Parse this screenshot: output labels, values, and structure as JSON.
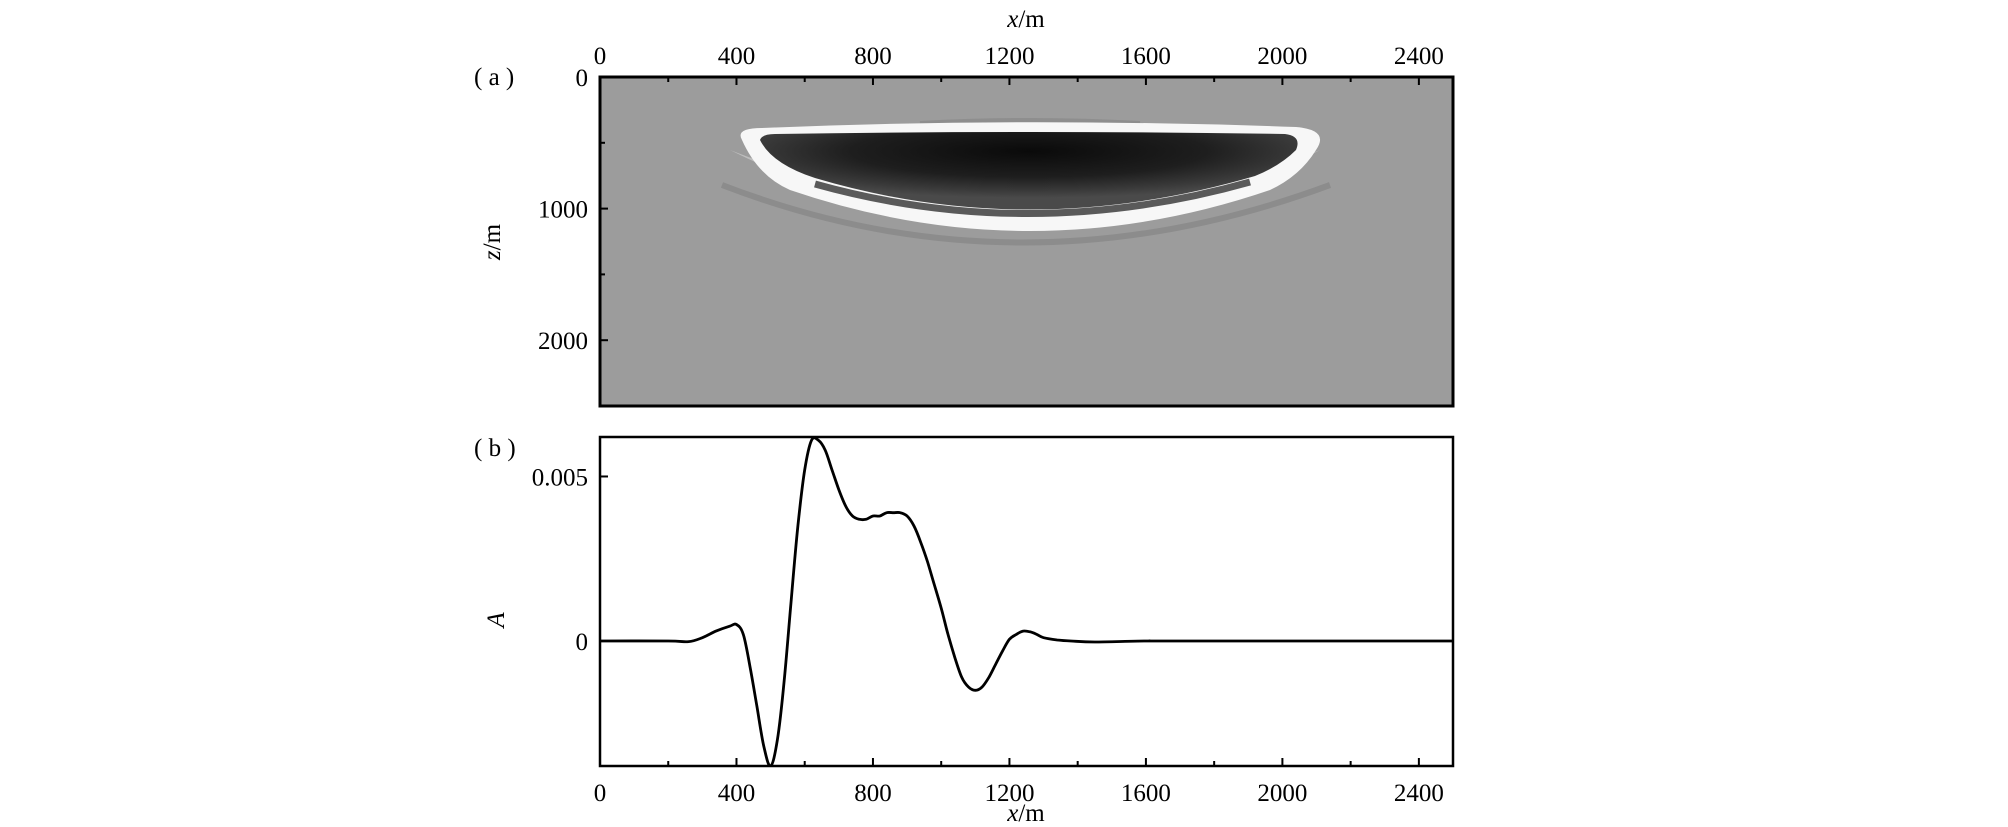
{
  "figure": {
    "background": "#ffffff",
    "panel_a_label": "( a )",
    "panel_b_label": "( b )"
  },
  "chart_data": [
    {
      "type": "heatmap",
      "panel": "a",
      "xlabel": {
        "var": "x",
        "unit": "/m"
      },
      "ylabel": {
        "var": "z",
        "unit": "/m"
      },
      "x_axis_position": "top",
      "xlim": [
        0,
        2500
      ],
      "ylim": [
        2500,
        0
      ],
      "xticks": [
        0,
        400,
        800,
        1200,
        1600,
        2000,
        2400
      ],
      "yticks": [
        0,
        1000,
        2000
      ],
      "colormap": "grayscale",
      "background_value_color": "#9c9c9c",
      "description_values": {
        "feature": "shallow lens-shaped reflection anomaly",
        "x_extent": [
          470,
          2120
        ],
        "z_top": 450,
        "z_bottom_center": 1350
      }
    },
    {
      "type": "line",
      "panel": "b",
      "xlabel": {
        "var": "x",
        "unit": "/m"
      },
      "ylabel": {
        "var": "A",
        "unit": ""
      },
      "xlim": [
        0,
        2500
      ],
      "ylim": [
        -0.0038,
        0.0062
      ],
      "xticks": [
        0,
        400,
        800,
        1200,
        1600,
        2000,
        2400
      ],
      "yticks": [
        0,
        0.005
      ],
      "ytick_labels": [
        "0",
        "0.005"
      ],
      "series": [
        {
          "color": "#000000",
          "x": [
            0,
            200,
            260,
            300,
            340,
            380,
            400,
            420,
            440,
            460,
            480,
            500,
            520,
            540,
            560,
            580,
            600,
            620,
            640,
            660,
            680,
            700,
            720,
            740,
            760,
            780,
            800,
            820,
            840,
            860,
            880,
            900,
            920,
            940,
            960,
            980,
            1000,
            1020,
            1040,
            1060,
            1080,
            1100,
            1120,
            1140,
            1160,
            1180,
            1200,
            1220,
            1240,
            1260,
            1280,
            1300,
            1340,
            1380,
            1450,
            1600,
            1700,
            2500
          ],
          "y": [
            0,
            0,
            -2e-05,
            0.0001,
            0.0003,
            0.00045,
            0.0005,
            0.0002,
            -0.0008,
            -0.002,
            -0.0032,
            -0.0038,
            -0.003,
            -0.0012,
            0.0012,
            0.0035,
            0.0052,
            0.0061,
            0.0061,
            0.0058,
            0.0052,
            0.0046,
            0.0041,
            0.0038,
            0.0037,
            0.0037,
            0.0038,
            0.0038,
            0.0039,
            0.0039,
            0.0039,
            0.0038,
            0.0035,
            0.003,
            0.0024,
            0.0017,
            0.001,
            0.0002,
            -0.0005,
            -0.0011,
            -0.0014,
            -0.0015,
            -0.0014,
            -0.0011,
            -0.0007,
            -0.0003,
            5e-05,
            0.0002,
            0.0003,
            0.00028,
            0.0002,
            0.0001,
            3e-05,
            0.0,
            -3e-05,
            0,
            0,
            0
          ]
        }
      ]
    }
  ]
}
